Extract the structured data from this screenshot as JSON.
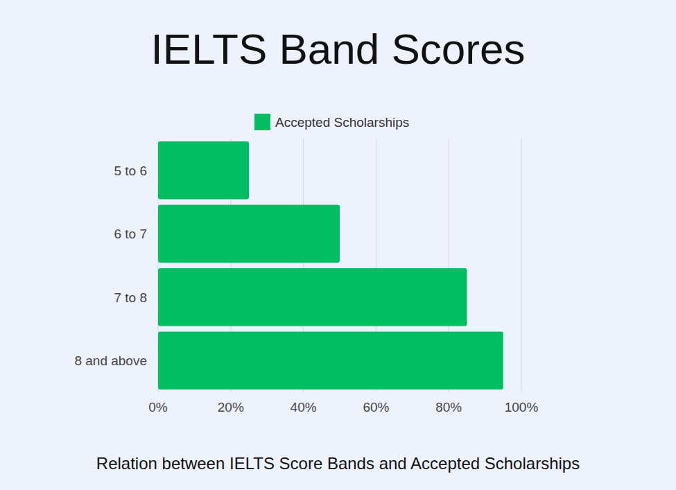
{
  "chart_data": {
    "type": "bar",
    "title": "IELTS Band Scores",
    "subtitle": "Relation between IELTS Score Bands and Accepted Scholarships",
    "orientation": "horizontal",
    "categories": [
      "5 to 6",
      "6 to 7",
      "7 to 8",
      "8 and above"
    ],
    "series": [
      {
        "name": "Accepted Scholarships",
        "color": "#00bf63",
        "values": [
          25,
          50,
          85,
          95
        ]
      }
    ],
    "xlim": [
      0,
      100
    ],
    "xticks": [
      {
        "value": 0,
        "label": "0%"
      },
      {
        "value": 20,
        "label": "20%"
      },
      {
        "value": 40,
        "label": "40%"
      },
      {
        "value": 60,
        "label": "60%"
      },
      {
        "value": 80,
        "label": "80%"
      },
      {
        "value": 100,
        "label": "100%"
      }
    ],
    "grid": true,
    "legend": "top"
  }
}
